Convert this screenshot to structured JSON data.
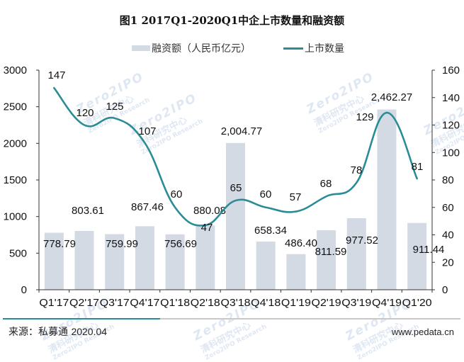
{
  "chart_data": {
    "type": "bar+line",
    "title": "图1 2017Q1-2020Q1中企上市数量和融资额",
    "categories": [
      "Q1'17",
      "Q2'17",
      "Q3'17",
      "Q4'17",
      "Q1'18",
      "Q2'18",
      "Q3'18",
      "Q4'18",
      "Q1'19",
      "Q2'19",
      "Q3'19",
      "Q4'19",
      "Q1'20"
    ],
    "series": [
      {
        "name": "融资额（人民币亿元）",
        "type": "bar",
        "axis": "left",
        "color": "#d3dae4",
        "values": [
          778.79,
          803.61,
          759.99,
          867.46,
          756.69,
          880.08,
          2004.77,
          658.34,
          486.4,
          811.59,
          977.52,
          2462.27,
          911.44
        ],
        "labels": [
          "778.79",
          "803.61",
          "759.99",
          "867.46",
          "756.69",
          "880.08",
          "2,004.77",
          "658.34",
          "486.40",
          "811.59",
          "977.52",
          "2,462.27",
          "911.44"
        ]
      },
      {
        "name": "上市数量",
        "type": "line",
        "axis": "right",
        "color": "#2a8c96",
        "smooth": true,
        "values": [
          147,
          120,
          125,
          107,
          60,
          47,
          65,
          60,
          57,
          68,
          78,
          129,
          81
        ],
        "labels": [
          "147",
          "120",
          "125",
          "107",
          "60",
          "47",
          "65",
          "60",
          "57",
          "68",
          "78",
          "129",
          "81"
        ]
      }
    ],
    "left_axis": {
      "ylim": [
        0,
        3000
      ],
      "ticks": [
        "0",
        "500",
        "1000",
        "1500",
        "2000",
        "2500",
        "3000"
      ]
    },
    "right_axis": {
      "ylim": [
        0,
        160
      ],
      "ticks": [
        "0",
        "20",
        "40",
        "60",
        "80",
        "100",
        "120",
        "140",
        "160"
      ]
    },
    "xlabel": "",
    "ylabel": "",
    "grid": false,
    "legend_position": "top"
  },
  "legend": {
    "bar_label": "融资额（人民币亿元）",
    "line_label": "上市数量"
  },
  "footer": {
    "source_label": "来源：私募通",
    "source_date": "2020.04",
    "url": "www.pedata.cn"
  },
  "watermark": {
    "brand": "Zero2IPO",
    "cn": "清科研究中心",
    "en": "Zero2IPO Research"
  },
  "colors": {
    "bar": "#d3dae4",
    "line": "#2a8c96",
    "separator_accent": "#2a8c96",
    "separator_gray": "#c8c8c8"
  }
}
